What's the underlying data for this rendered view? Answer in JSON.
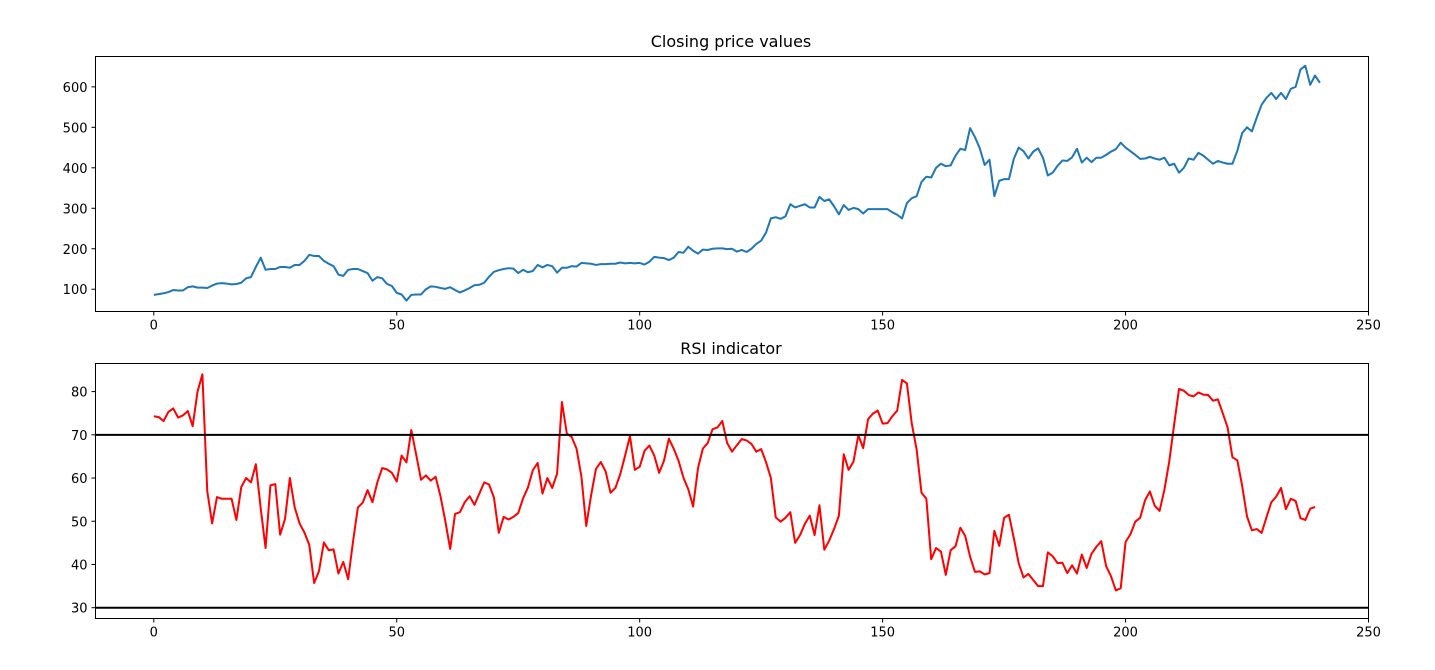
{
  "chart_data": [
    {
      "type": "line",
      "title": "Closing price values",
      "xlabel": "",
      "ylabel": "",
      "xlim": [
        -12,
        250
      ],
      "ylim": [
        45,
        675
      ],
      "xticks": [
        0,
        50,
        100,
        150,
        200,
        250
      ],
      "yticks": [
        100,
        200,
        300,
        400,
        500,
        600
      ],
      "grid": false,
      "series": [
        {
          "color": "#1f77b4",
          "values": [
            86,
            88,
            90,
            93,
            98,
            97,
            97,
            105,
            107,
            104,
            104,
            103,
            109,
            114,
            115,
            114,
            112,
            113,
            116,
            127,
            130,
            155,
            178,
            148,
            150,
            150,
            155,
            155,
            153,
            160,
            160,
            170,
            185,
            182,
            182,
            170,
            163,
            157,
            136,
            133,
            148,
            150,
            150,
            145,
            140,
            121,
            130,
            127,
            113,
            108,
            91,
            87,
            72,
            86,
            87,
            87,
            100,
            107,
            106,
            103,
            101,
            105,
            98,
            92,
            97,
            103,
            110,
            111,
            116,
            131,
            143,
            147,
            150,
            152,
            151,
            140,
            148,
            142,
            145,
            160,
            154,
            160,
            157,
            141,
            153,
            153,
            157,
            156,
            165,
            164,
            163,
            160,
            162,
            162,
            163,
            163,
            166,
            164,
            165,
            164,
            165,
            161,
            168,
            180,
            178,
            177,
            172,
            178,
            192,
            190,
            205,
            195,
            188,
            198,
            197,
            200,
            201,
            201,
            199,
            200,
            193,
            197,
            192,
            200,
            212,
            220,
            240,
            275,
            278,
            274,
            280,
            310,
            302,
            306,
            310,
            302,
            302,
            328,
            318,
            322,
            305,
            285,
            308,
            296,
            301,
            298,
            287,
            298,
            298,
            298,
            298,
            298,
            290,
            284,
            275,
            313,
            325,
            330,
            365,
            378,
            376,
            400,
            410,
            404,
            406,
            430,
            447,
            444,
            498,
            476,
            448,
            407,
            420,
            330,
            368,
            372,
            372,
            422,
            450,
            441,
            423,
            440,
            448,
            425,
            381,
            388,
            405,
            418,
            417,
            426,
            447,
            413,
            425,
            414,
            425,
            425,
            432,
            440,
            446,
            462,
            450,
            441,
            432,
            422,
            423,
            427,
            423,
            420,
            425,
            406,
            410,
            388,
            400,
            423,
            420,
            437,
            430,
            420,
            410,
            417,
            413,
            410,
            410,
            442,
            486,
            500,
            490,
            524,
            556,
            573,
            585,
            570,
            585,
            570,
            595,
            600,
            643,
            652,
            605,
            628,
            610
          ]
        }
      ]
    },
    {
      "type": "line",
      "title": "RSI indicator",
      "xlabel": "",
      "ylabel": "",
      "xlim": [
        -12,
        250
      ],
      "ylim": [
        27.5,
        86.5
      ],
      "xticks": [
        0,
        50,
        100,
        150,
        200,
        250
      ],
      "yticks": [
        30,
        40,
        50,
        60,
        70,
        80
      ],
      "grid": false,
      "reference_lines": [
        {
          "y": 70,
          "color": "#000000"
        },
        {
          "y": 30,
          "color": "#000000"
        }
      ],
      "series": [
        {
          "color": "#ff0000",
          "values": [
            74.3,
            74.1,
            73.2,
            75.3,
            76.1,
            74.0,
            74.5,
            75.5,
            72.0,
            80.0,
            84.0,
            57.0,
            49.5,
            55.6,
            55.2,
            55.2,
            55.2,
            50.3,
            57.9,
            60.0,
            59.0,
            63.2,
            53.0,
            43.8,
            58.3,
            58.6,
            46.9,
            50.5,
            60.0,
            53.2,
            49.5,
            47.4,
            44.5,
            35.7,
            38.5,
            45.1,
            43.3,
            43.5,
            37.9,
            40.6,
            36.6,
            45.3,
            53.2,
            54.3,
            57.2,
            54.4,
            59.0,
            62.3,
            62.0,
            61.2,
            59.2,
            65.2,
            63.6,
            71.1,
            65.4,
            59.6,
            60.6,
            59.4,
            60.3,
            55.8,
            50.0,
            43.6,
            51.7,
            52.1,
            54.4,
            55.8,
            53.8,
            56.4,
            59.0,
            58.5,
            55.5,
            47.3,
            51.0,
            50.4,
            51.0,
            51.9,
            55.3,
            57.8,
            61.8,
            63.5,
            56.4,
            60.0,
            57.7,
            61.0,
            77.6,
            70.3,
            69.5,
            66.8,
            60.4,
            48.9,
            56.0,
            62.1,
            63.7,
            61.5,
            56.6,
            57.7,
            60.9,
            65.2,
            69.7,
            61.9,
            62.6,
            66.3,
            67.5,
            65.2,
            61.2,
            64.0,
            69.1,
            66.8,
            64.0,
            60.1,
            57.4,
            53.4,
            62.3,
            66.8,
            68.1,
            71.3,
            71.7,
            73.2,
            68.1,
            66.1,
            67.6,
            69.0,
            68.7,
            67.9,
            66.1,
            66.7,
            63.7,
            60.0,
            50.9,
            49.9,
            50.8,
            52.1,
            45.0,
            46.8,
            49.4,
            51.3,
            46.8,
            53.7,
            43.4,
            45.5,
            48.2,
            51.3,
            65.5,
            61.9,
            63.8,
            69.9,
            66.9,
            73.6,
            74.9,
            75.6,
            72.6,
            72.7,
            74.3,
            75.6,
            82.7,
            81.9,
            72.6,
            66.6,
            56.6,
            55.2,
            41.2,
            43.8,
            43.0,
            37.6,
            43.3,
            44.2,
            48.5,
            46.6,
            41.8,
            38.3,
            38.4,
            37.7,
            38.0,
            47.8,
            44.3,
            50.8,
            51.5,
            46.1,
            40.3,
            37.0,
            37.8,
            36.4,
            35.0,
            35.0,
            42.8,
            41.9,
            40.3,
            40.4,
            38.0,
            39.8,
            37.9,
            42.3,
            39.2,
            42.5,
            44.1,
            45.4,
            39.6,
            37.3,
            34.0,
            34.5,
            45.2,
            47.0,
            49.9,
            50.8,
            54.8,
            56.9,
            53.6,
            52.4,
            57.3,
            63.9,
            72.4,
            80.6,
            80.2,
            79.2,
            78.9,
            79.8,
            79.3,
            79.2,
            77.9,
            78.2,
            75.0,
            71.7,
            64.8,
            64.1,
            58.2,
            51.1,
            47.9,
            48.2,
            47.3,
            50.9,
            54.4,
            55.7,
            57.7,
            52.8,
            55.2,
            54.7,
            50.7,
            50.3,
            52.9,
            53.3
          ]
        }
      ]
    }
  ]
}
